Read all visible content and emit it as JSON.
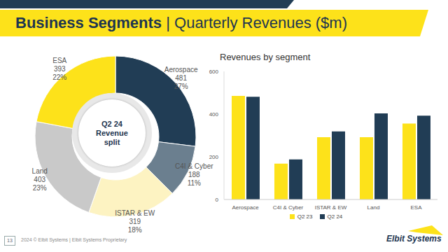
{
  "slide": {
    "title": [
      "Business Segments",
      "| Quarterly Revenues ($m)"
    ],
    "page_number": "13",
    "footer": "2024 © Elbit Systems | Elbit Systems Proprietary",
    "logo": "Elbit Systems"
  },
  "chart_data": [
    {
      "type": "pie",
      "center_text": [
        "Q2 24",
        "Revenue",
        "split"
      ],
      "categories": [
        "Aerospace",
        "C4I & Cyber",
        "ISTAR & EW",
        "Land",
        "ESA"
      ],
      "values": [
        481,
        188,
        319,
        403,
        393
      ],
      "percent_labels": [
        "27%",
        "11%",
        "18%",
        "23%",
        "22%"
      ],
      "colors": [
        "#213d55",
        "#6b7f8f",
        "#fdf3c2",
        "#c9c9c9",
        "#fde21a"
      ],
      "data_labels": true
    },
    {
      "type": "bar",
      "title": "Revenues by segment",
      "categories": [
        "Aerospace",
        "C4I & Cyber",
        "ISTAR & EW",
        "Land",
        "ESA"
      ],
      "series": [
        {
          "name": "Q2 23",
          "color": "#fde21a",
          "values": [
            485,
            168,
            292,
            292,
            356
          ]
        },
        {
          "name": "Q2 24",
          "color": "#213d55",
          "values": [
            481,
            188,
            319,
            403,
            393
          ]
        }
      ],
      "ylim": [
        0,
        600
      ],
      "yticks": [
        0,
        200,
        400,
        600
      ],
      "grid": false,
      "legend": "bottom"
    }
  ]
}
